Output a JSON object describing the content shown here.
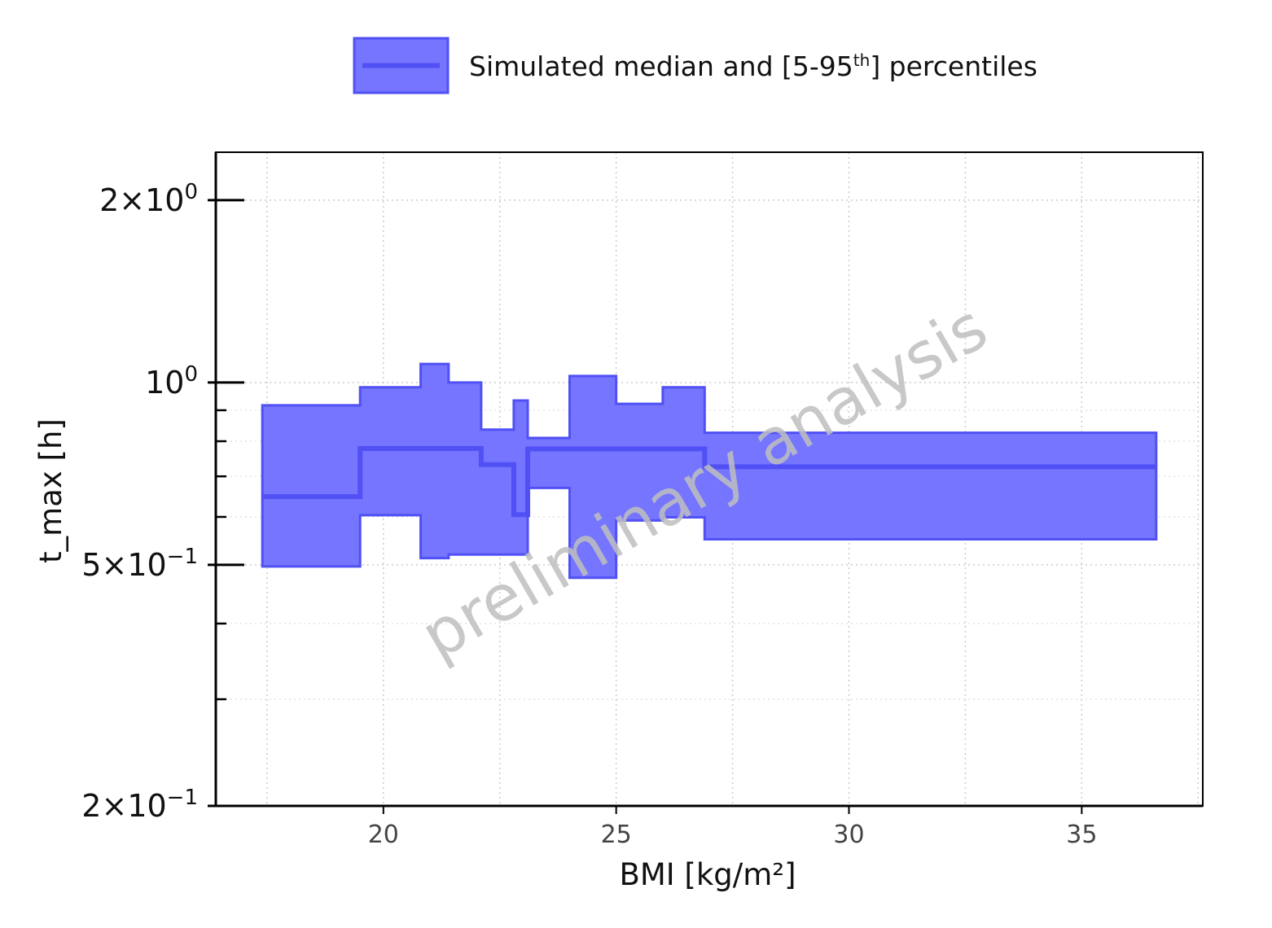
{
  "chart_data": {
    "type": "area",
    "title": "",
    "xlabel": "BMI [kg/m²]",
    "ylabel": "t_max [h]",
    "xlim": [
      16.4,
      37.6
    ],
    "ylim": [
      0.2,
      2.4
    ],
    "y_scale": "log",
    "grid": true,
    "legend_position": "top",
    "x_ticks": [
      20,
      25,
      30,
      35
    ],
    "x_tick_labels": [
      "20",
      "25",
      "30",
      "35"
    ],
    "y_ticks": [
      {
        "value": 2.0,
        "mantissa": "2",
        "exponent": "0"
      },
      {
        "value": 1.0,
        "mantissa": "",
        "exponent": "0"
      },
      {
        "value": 0.5,
        "mantissa": "5",
        "exponent": "−1"
      },
      {
        "value": 0.2,
        "mantissa": "2",
        "exponent": "−1"
      }
    ],
    "y_minor_ticks": [
      0.9,
      0.8,
      0.7,
      0.6,
      0.4,
      0.3
    ],
    "legend": {
      "label": "Simulated median and [5-95",
      "label_sup": "th",
      "label_end": "] percentiles"
    },
    "series": [
      {
        "name": "Simulated median and [5-95th] percentiles",
        "color": "#5050f5",
        "fill_color": "#7575ff",
        "bins": [
          {
            "x0": 17.4,
            "x1": 19.5,
            "p5": 0.497,
            "median": 0.648,
            "p95": 0.917
          },
          {
            "x0": 19.5,
            "x1": 20.8,
            "p5": 0.604,
            "median": 0.778,
            "p95": 0.982
          },
          {
            "x0": 20.8,
            "x1": 21.4,
            "p5": 0.513,
            "median": 0.778,
            "p95": 1.073
          },
          {
            "x0": 21.4,
            "x1": 22.1,
            "p5": 0.52,
            "median": 0.778,
            "p95": 1.0
          },
          {
            "x0": 22.1,
            "x1": 22.8,
            "p5": 0.52,
            "median": 0.732,
            "p95": 0.836
          },
          {
            "x0": 22.8,
            "x1": 23.1,
            "p5": 0.52,
            "median": 0.605,
            "p95": 0.934
          },
          {
            "x0": 23.1,
            "x1": 24.0,
            "p5": 0.67,
            "median": 0.777,
            "p95": 0.81
          },
          {
            "x0": 24.0,
            "x1": 25.0,
            "p5": 0.476,
            "median": 0.777,
            "p95": 1.025
          },
          {
            "x0": 25.0,
            "x1": 26.0,
            "p5": 0.592,
            "median": 0.777,
            "p95": 0.922
          },
          {
            "x0": 26.0,
            "x1": 26.9,
            "p5": 0.599,
            "median": 0.777,
            "p95": 0.982
          },
          {
            "x0": 26.9,
            "x1": 36.6,
            "p5": 0.551,
            "median": 0.726,
            "p95": 0.826
          }
        ]
      }
    ],
    "annotations": [
      {
        "text": "preliminary analysis",
        "style": "watermark",
        "angle_deg": -30
      }
    ]
  }
}
